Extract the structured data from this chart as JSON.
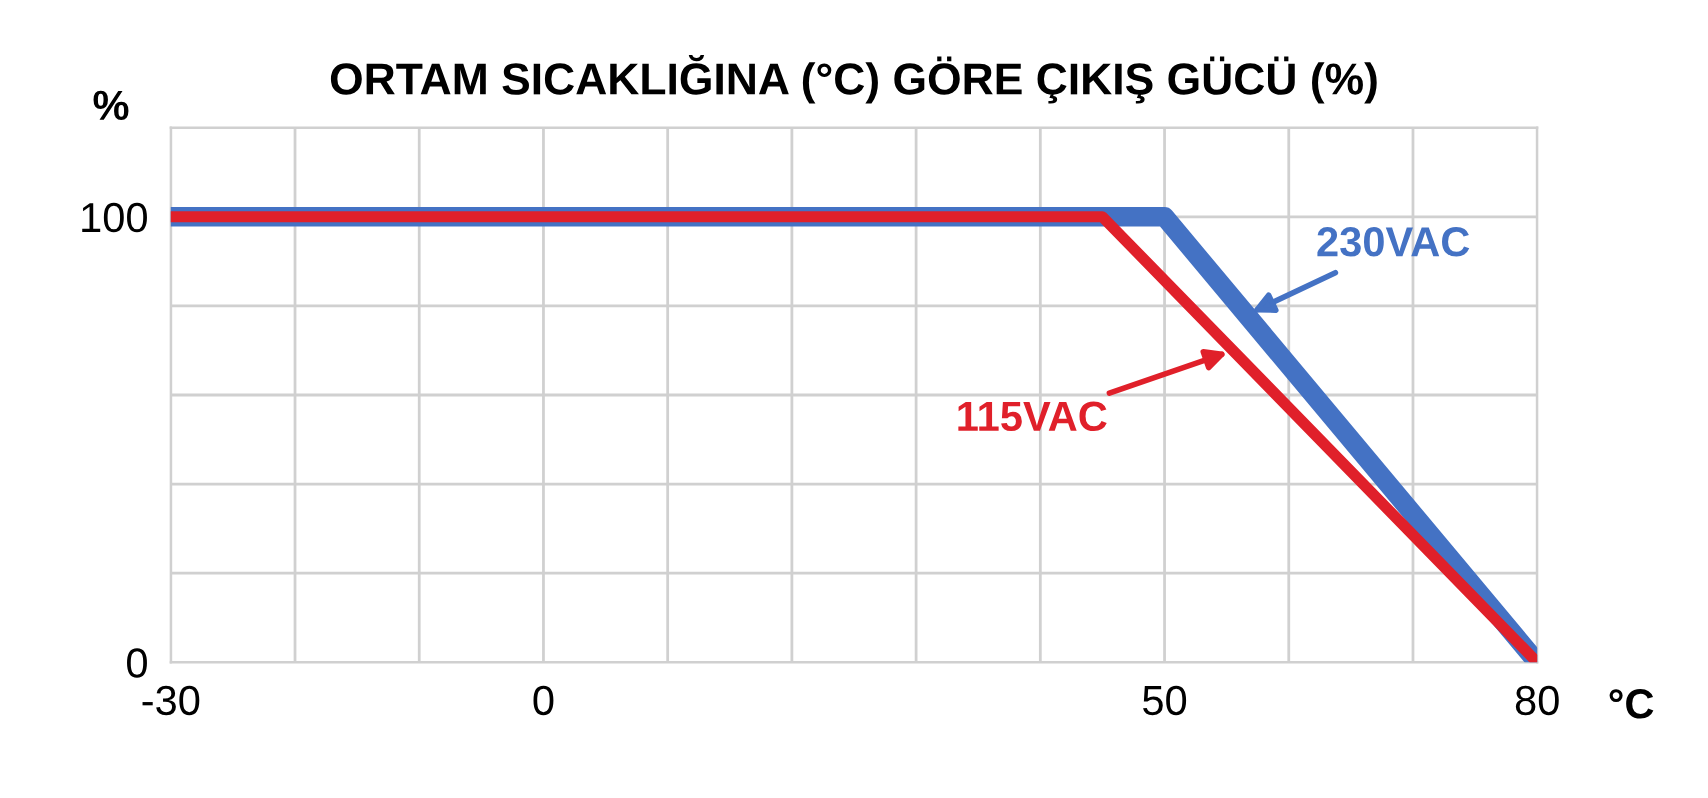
{
  "chart_data": {
    "type": "line",
    "title": "ORTAM SICAKLIĞINA (°C) GÖRE ÇIKIŞ GÜCÜ (%)",
    "xlabel": "°C",
    "ylabel": "%",
    "series": [
      {
        "name": "230VAC",
        "color": "#4472c4",
        "x": [
          -30,
          50,
          80
        ],
        "values": [
          100,
          100,
          0
        ]
      },
      {
        "name": "115VAC",
        "color": "#e0202a",
        "x": [
          -30,
          45,
          80
        ],
        "values": [
          100,
          100,
          0
        ]
      }
    ],
    "xlim": [
      -30,
      80
    ],
    "xticks": [
      -30,
      {
        "value": -20,
        "label": null
      },
      {
        "value": -10,
        "label": null
      },
      0,
      {
        "value": 10,
        "label": null
      },
      {
        "value": 20,
        "label": null
      },
      {
        "value": 30,
        "label": null
      },
      {
        "value": 40,
        "label": null
      },
      50,
      {
        "value": 60,
        "label": null
      },
      {
        "value": 70,
        "label": null
      },
      80
    ],
    "ylim": [
      0,
      120
    ],
    "yticks": [
      0,
      {
        "value": 20,
        "label": null
      },
      {
        "value": 40,
        "label": null
      },
      {
        "value": 60,
        "label": null
      },
      {
        "value": 80,
        "label": null
      },
      100,
      {
        "value": 120,
        "label": null
      }
    ],
    "grid": true,
    "legend": false,
    "marker": "none",
    "line_style": "solid"
  }
}
